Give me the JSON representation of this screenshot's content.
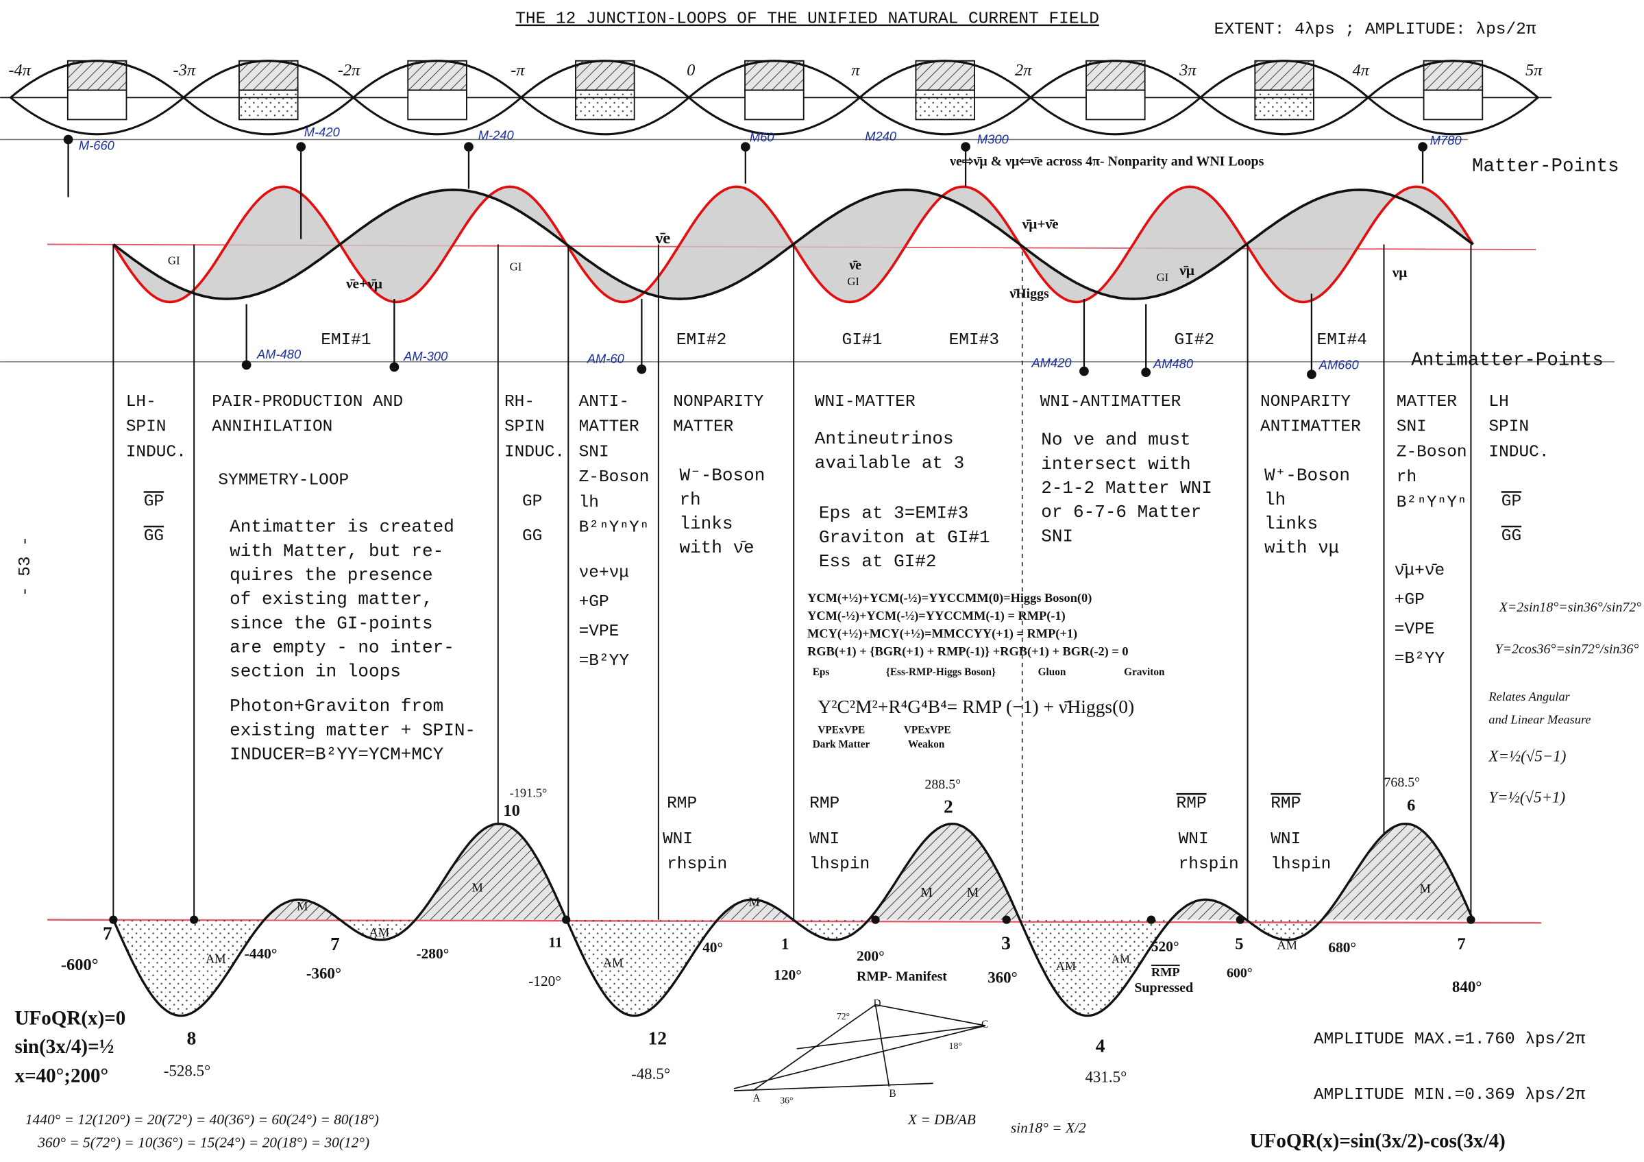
{
  "header": {
    "title": "THE 12 JUNCTION-LOOPS OF THE UNIFIED NATURAL CURRENT FIELD",
    "extent": "EXTENT: 4λps ;  AMPLITUDE: λps/2π"
  },
  "top_axis": [
    "-4π",
    "-3π",
    "-2π",
    "-π",
    "0",
    "π",
    "2π",
    "3π",
    "4π",
    "5π"
  ],
  "matter_points": [
    "M-660",
    "M-420",
    "M-240",
    "M60",
    "M240",
    "M300",
    "M780"
  ],
  "antimatter_points": [
    "AM-480",
    "AM-300",
    "AM-60",
    "AM420",
    "AM480",
    "AM660"
  ],
  "text_blocks": [
    [
      "LH-",
      "SPIN",
      "INDUC."
    ],
    [
      "GP",
      "GG"
    ],
    [
      "PAIR-PRODUCTION AND",
      "ANNIHILATION"
    ],
    [
      "SYMMETRY-LOOP"
    ],
    [
      "Antimatter is created",
      "with Matter, but re-",
      "quires the presence",
      "of existing matter,",
      "since the GI-points",
      "are empty - no inter-",
      "section in loops"
    ],
    [
      "Photon+Graviton from",
      "existing matter + SPIN-",
      "INDUCER=B²YY=YCM+MCY"
    ],
    [
      "RH-",
      "SPIN",
      "INDUC."
    ],
    [
      "GP",
      "GG"
    ],
    [
      "ANTI-",
      "MATTER",
      "SNI",
      "Z-Boson",
      "lh",
      "B²ⁿYⁿYⁿ"
    ],
    [
      "νe+νμ",
      "+GP",
      "=VPE",
      "=B²YY"
    ],
    [
      "NONPARITY",
      "MATTER"
    ],
    [
      "W⁻-Boson",
      "rh",
      "links",
      "with ν̄e"
    ],
    [
      "WNI-MATTER"
    ],
    [
      "Antineutrinos",
      "available at 3"
    ],
    [
      "Eps at 3=EMI#3",
      "Graviton at GI#1",
      "Ess at GI#2"
    ],
    [
      "WNI-ANTIMATTER"
    ],
    [
      "No νe and must",
      "intersect with",
      "2-1-2 Matter WNI",
      "or 6-7-6 Matter",
      "SNI"
    ],
    [
      "NONPARITY",
      "ANTIMATTER"
    ],
    [
      "W⁺-Boson",
      "lh",
      "links",
      "with νμ"
    ],
    [
      "MATTER",
      "SNI",
      "Z-Boson",
      "rh",
      "B²ⁿYⁿYⁿ"
    ],
    [
      "ν̄μ+ν̄e",
      "+GP",
      "=VPE",
      "=B²YY"
    ],
    [
      "LH",
      "SPIN",
      "INDUC."
    ],
    [
      "GP",
      "GG"
    ],
    [
      "YCM(+½)+YCM(-½)=YYCCMM(0)=Higgs Boson(0)",
      "YCM(-½)+YCM(-½)=YYCCMM(-1) = RMP(-1)",
      "MCY(+½)+MCY(+½)=MMCCYY(+1) = RMP(+1)",
      "RGB(+1) + {BGR(+1) + RMP(-1)} +RGB(+1) + BGR(-2) = 0"
    ]
  ],
  "labels": [
    "- 53 -",
    "Matter-Points",
    "Antimatter-Points",
    "νe⇨ν̄μ & νμ⇦ν̄e across 4π- Nonparity and WNI Loops",
    "EMI#1",
    "EMI#2",
    "GI#1",
    "EMI#3",
    "GI#2",
    "EMI#4",
    "Eps",
    "{Ess-RMP-Higgs Boson}",
    "Gluon",
    "Graviton",
    "Y²C²M²+R⁴G⁴B⁴= RMP (−1) + ν̄Higgs(0)",
    "VPExVPE",
    "Dark Matter",
    "VPExVPE",
    "Weakon",
    "RMP",
    "WNI",
    "rhspin",
    "RMP",
    "WNI",
    "lhspin",
    "RMP",
    "WNI",
    "rhspin",
    "RMP",
    "WNI",
    "lhspin",
    "7",
    "-600°",
    "8",
    "-528.5°",
    "-440°",
    "7",
    "-360°",
    "-280°",
    "10",
    "-191.5°",
    "11",
    "-120°",
    "12",
    "-48.5°",
    "40°",
    "1",
    "120°",
    "200°",
    "RMP- Manifest",
    "2",
    "288.5°",
    "3",
    "360°",
    "520°",
    "RMP",
    "Supressed",
    "4",
    "431.5°",
    "5",
    "600°",
    "680°",
    "6",
    "768.5°",
    "7",
    "840°",
    "M",
    "AM",
    "AM",
    "M",
    "AM",
    "M",
    "M",
    "M",
    "AM",
    "AM",
    "AM",
    "M",
    "UFoQR(x)=0",
    "sin(3x/4)=½",
    "x=40°;200°",
    "AMPLITUDE MAX.=1.760 λps/2π",
    "AMPLITUDE MIN.=0.369 λps/2π",
    "UFoQR(x)=sin(3x/2)-cos(3x/4)",
    "1440° = 12(120°) = 20(72°) = 40(36°) = 60(24°) = 80(18°)",
    "360° = 5(72°) = 10(36°) = 15(24°) = 20(18°) = 30(12°)",
    "X = DB/AB",
    "sin18° = X/2",
    "A",
    "B",
    "C",
    "D",
    "72°",
    "36°",
    "18°",
    "X=2sin18°=sin36°/sin72°",
    "Y=2cos36°=sin72°/sin36°",
    "Relates Angular",
    "and Linear Measure",
    "X=½(√5−1)",
    "Y=½(√5+1)",
    "GI",
    "GI",
    "GI",
    "GI",
    "ν̄e+ν̄μ",
    "ν̄e",
    "ν̄e",
    "ν̄μ+ν̄e",
    "ν̄Higgs",
    "ν̄μ",
    "νμ"
  ]
}
